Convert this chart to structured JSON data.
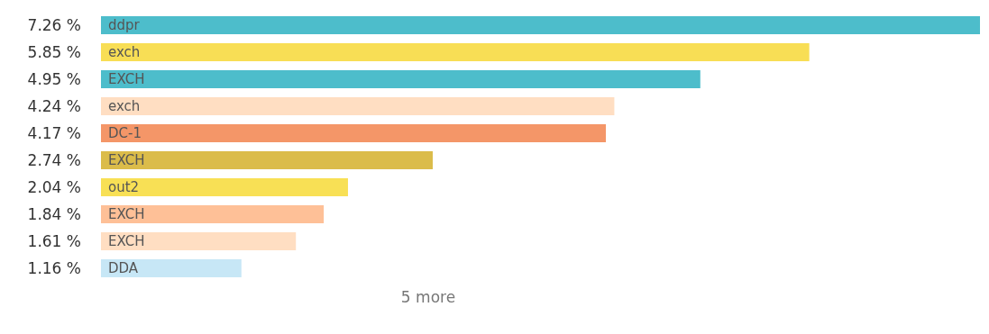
{
  "chart_data": {
    "type": "bar",
    "orientation": "horizontal",
    "categories": [
      "ddpr",
      "exch",
      "EXCH",
      "exch",
      "DC-1",
      "EXCH",
      "out2",
      "EXCH",
      "EXCH",
      "DDA"
    ],
    "values": [
      7.26,
      5.85,
      4.95,
      4.24,
      4.17,
      2.74,
      2.04,
      1.84,
      1.61,
      1.16
    ],
    "value_labels": [
      "7.26 %",
      "5.85 %",
      "4.95 %",
      "4.24 %",
      "4.17 %",
      "2.74 %",
      "2.04 %",
      "1.84 %",
      "1.61 %",
      "1.16 %"
    ],
    "colors": [
      "#4dbdcb",
      "#f8de55",
      "#4dbdcb",
      "#ffdec2",
      "#f49668",
      "#dbbc4a",
      "#f8e055",
      "#fec097",
      "#ffdec2",
      "#c7e7f6"
    ],
    "xlim": [
      0,
      7.26
    ],
    "annotations": [
      "5 more"
    ]
  }
}
